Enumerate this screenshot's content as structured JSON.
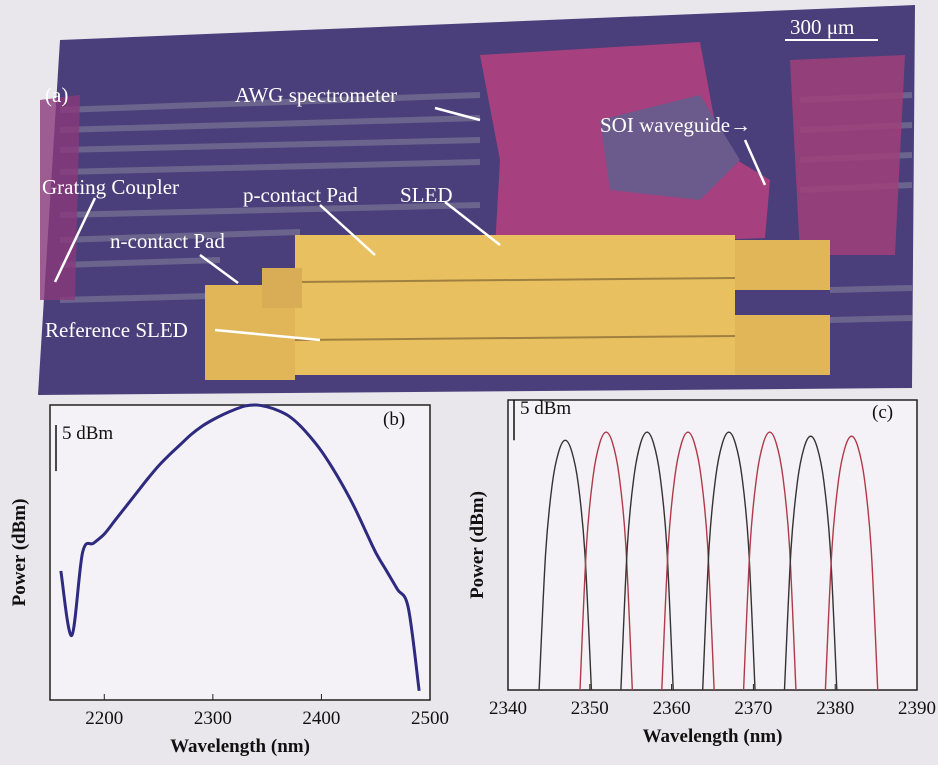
{
  "micrograph": {
    "panel_label": "(a)",
    "scale_bar": "300 μm",
    "labels": [
      "AWG spectrometer",
      "SOI waveguide→",
      "Grating Coupler",
      "p-contact Pad",
      "SLED",
      "n-contact Pad",
      "Reference SLED"
    ]
  },
  "chart_data": [
    {
      "type": "line",
      "panel_label": "(b)",
      "x_label": "Wavelength (nm)",
      "y_label": "Power (dBm)",
      "scale_bar": {
        "value": 5,
        "label": "5 dBm"
      },
      "xlim": [
        2150,
        2500
      ],
      "xticks": [
        2200,
        2300,
        2400,
        2500
      ],
      "ylim": [
        -32,
        0
      ],
      "series": [
        {
          "color": "#2e2a80",
          "x": [
            2160,
            2170,
            2180,
            2190,
            2200,
            2210,
            2220,
            2230,
            2240,
            2250,
            2260,
            2270,
            2280,
            2290,
            2300,
            2310,
            2320,
            2330,
            2340,
            2350,
            2360,
            2370,
            2380,
            2390,
            2400,
            2410,
            2420,
            2430,
            2440,
            2450,
            2460,
            2470,
            2480,
            2490
          ],
          "values": [
            -18,
            -25,
            -16,
            -15,
            -14,
            -12.5,
            -11,
            -9.5,
            -8,
            -6.6,
            -5.4,
            -4.3,
            -3.2,
            -2.3,
            -1.6,
            -1,
            -0.5,
            -0.1,
            0,
            -0.2,
            -0.6,
            -1.2,
            -2.2,
            -3.5,
            -5,
            -6.8,
            -8.8,
            -11,
            -13.5,
            -16,
            -18,
            -20,
            -22,
            -31
          ]
        }
      ]
    },
    {
      "type": "line",
      "panel_label": "(c)",
      "x_label": "Wavelength (nm)",
      "y_label": "Power (dBm)",
      "scale_bar": {
        "value": 5,
        "label": "5 dBm"
      },
      "xlim": [
        2340,
        2390
      ],
      "xticks": [
        2340,
        2350,
        2360,
        2370,
        2380,
        2390
      ],
      "ylim": [
        -32,
        4
      ],
      "series": [
        {
          "color": "#333333",
          "x": [
            2343.8,
            2344.6,
            2345.4,
            2346.2,
            2347,
            2347.8,
            2348.6,
            2349.4,
            2350.2
          ],
          "values": [
            -32,
            -15,
            -6.5,
            -2.4,
            -1,
            -2.4,
            -6.5,
            -15,
            -32
          ]
        },
        {
          "color": "#b03a4a",
          "x": [
            2348.8,
            2349.6,
            2350.4,
            2351.2,
            2352,
            2352.8,
            2353.6,
            2354.4,
            2355.2
          ],
          "values": [
            -32,
            -14,
            -5.5,
            -1.4,
            0,
            -1.4,
            -5.5,
            -14,
            -32
          ]
        },
        {
          "color": "#333333",
          "x": [
            2353.8,
            2354.6,
            2355.4,
            2356.2,
            2357,
            2357.8,
            2358.6,
            2359.4,
            2360.2
          ],
          "values": [
            -32,
            -14,
            -5.5,
            -1.4,
            0,
            -1.4,
            -5.5,
            -14,
            -32
          ]
        },
        {
          "color": "#b03a4a",
          "x": [
            2358.8,
            2359.6,
            2360.4,
            2361.2,
            2362,
            2362.8,
            2363.6,
            2364.4,
            2365.2
          ],
          "values": [
            -32,
            -14,
            -5.5,
            -1.4,
            0,
            -1.4,
            -5.5,
            -14,
            -32
          ]
        },
        {
          "color": "#333333",
          "x": [
            2363.8,
            2364.6,
            2365.4,
            2366.2,
            2367,
            2367.8,
            2368.6,
            2369.4,
            2370.2
          ],
          "values": [
            -32,
            -14,
            -5.5,
            -1.4,
            0,
            -1.4,
            -5.5,
            -14,
            -32
          ]
        },
        {
          "color": "#b03a4a",
          "x": [
            2368.8,
            2369.6,
            2370.4,
            2371.2,
            2372,
            2372.8,
            2373.6,
            2374.4,
            2375.2
          ],
          "values": [
            -32,
            -14,
            -5.5,
            -1.4,
            0,
            -1.4,
            -5.5,
            -14,
            -32
          ]
        },
        {
          "color": "#333333",
          "x": [
            2373.8,
            2374.6,
            2375.4,
            2376.2,
            2377,
            2377.8,
            2378.6,
            2379.4,
            2380.2
          ],
          "values": [
            -32,
            -14.5,
            -6,
            -1.9,
            -0.5,
            -1.9,
            -6,
            -14.5,
            -32
          ]
        },
        {
          "color": "#b03a4a",
          "x": [
            2378.8,
            2379.6,
            2380.4,
            2381.2,
            2382,
            2382.8,
            2383.6,
            2384.4,
            2385.2
          ],
          "values": [
            -32,
            -14.5,
            -6,
            -1.9,
            -0.5,
            -1.9,
            -6,
            -14.5,
            -32
          ]
        }
      ]
    }
  ]
}
